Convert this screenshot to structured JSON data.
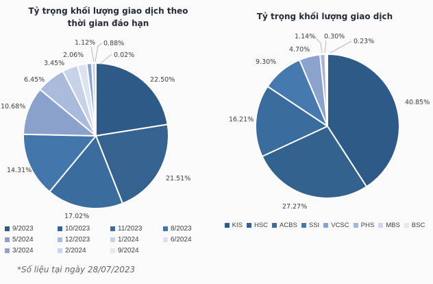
{
  "page": {
    "background": "#fafafa",
    "footnote": "*Số liệu tại ngày 28/07/2023",
    "label_color": "#404040",
    "title_color": "#252b38",
    "leader_line_color": "#a6a6a6"
  },
  "chart_data": [
    {
      "type": "pie",
      "title": "Tỷ trọng khối lượng giao dịch theo thời gian đáo hạn",
      "title_lines": [
        "Tỷ trọng khối lượng giao dịch theo",
        "thời gian đáo hạn"
      ],
      "categories": [
        "9/2023",
        "10/2023",
        "11/2023",
        "8/2023",
        "5/2024",
        "12/2023",
        "1/2024",
        "6/2024",
        "3/2024",
        "2/2024",
        "9/2024"
      ],
      "values": [
        22.5,
        21.51,
        17.02,
        14.31,
        10.68,
        6.45,
        3.45,
        2.06,
        1.12,
        0.88,
        0.02
      ],
      "labels": [
        "22.50%",
        "21.51%",
        "17.02%",
        "14.31%",
        "10.68%",
        "6.45%",
        "3.45%",
        "2.06%",
        "1.12%",
        "0.88%",
        "0.02%"
      ],
      "colors": [
        "#2e5a87",
        "#35628e",
        "#3b6c9e",
        "#4376ab",
        "#8aa2cb",
        "#a9bada",
        "#c7d1e8",
        "#dce2f0",
        "#8da5cd",
        "#c9d3e9",
        "#e3e8f4"
      ],
      "start_angle_deg": 0,
      "direction": "clockwise",
      "legend_position": "bottom",
      "legend_columns": 4
    },
    {
      "type": "pie",
      "title": "Tỷ trọng khối lượng giao dịch",
      "title_lines": [
        "Tỷ trọng khối lượng giao dịch"
      ],
      "categories": [
        "KIS",
        "HSC",
        "ACBS",
        "SSI",
        "VCSC",
        "PHS",
        "MBS",
        "BSC"
      ],
      "values": [
        40.85,
        27.27,
        16.21,
        9.3,
        4.7,
        1.14,
        0.3,
        0.23
      ],
      "labels": [
        "40.85%",
        "27.27%",
        "16.21%",
        "9.30%",
        "4.70%",
        "1.14%",
        "0.30%",
        "0.23%"
      ],
      "colors": [
        "#2e5a87",
        "#34628e",
        "#3b6c9e",
        "#4679ae",
        "#8ba3cc",
        "#a3b5d8",
        "#cdd7ea",
        "#e2e7f3"
      ],
      "start_angle_deg": 0,
      "direction": "clockwise",
      "legend_position": "bottom",
      "legend_columns": 8
    }
  ]
}
